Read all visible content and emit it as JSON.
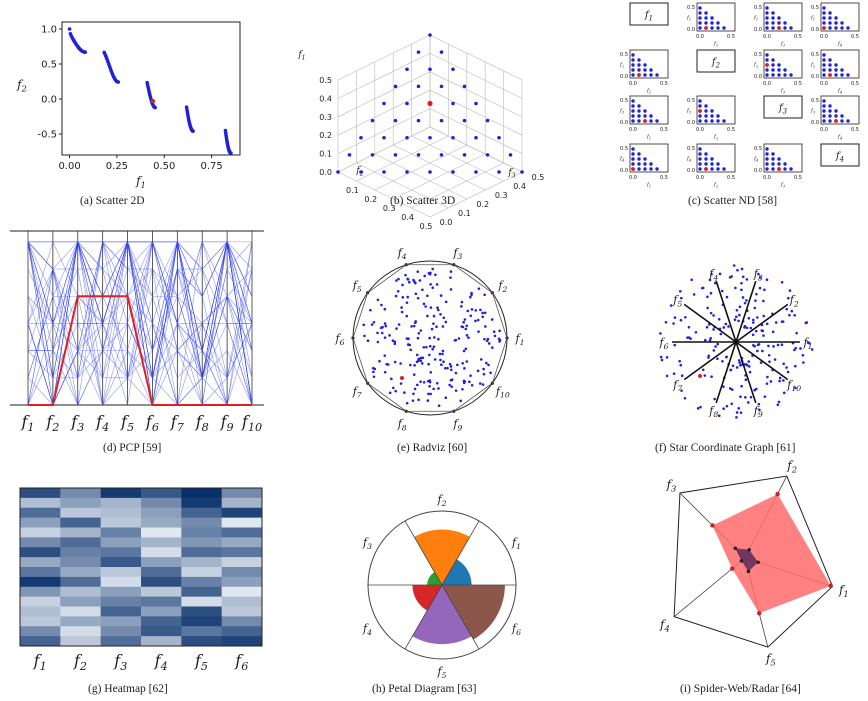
{
  "colors": {
    "point": "#1f22d6",
    "highlight": "#e02020",
    "axis": "#222222"
  },
  "captions": {
    "a": "(a)    Scatter 2D",
    "b": "(b) Scatter 3D",
    "c": "(c) Scatter ND [58]",
    "d": "(d) PCP [59]",
    "e": "(e) Radviz [60]",
    "f": "(f) Star Coordinate Graph [61]",
    "g": "(g) Heatmap [62]",
    "h": "(h) Petal Diagram [63]",
    "i": "(i) Spider-Web/Radar [64]"
  },
  "chart_data": [
    {
      "id": "scatter2d",
      "type": "scatter",
      "xlabel": "f1",
      "ylabel": "f2",
      "xlim": [
        -0.04,
        0.9
      ],
      "ylim": [
        -0.8,
        1.1
      ],
      "xticks": [
        "0.00",
        "0.25",
        "0.50",
        "0.75"
      ],
      "xtick_values": [
        0,
        0.25,
        0.5,
        0.75
      ],
      "yticks": [
        "1.0",
        "0.5",
        "0.0",
        "-0.5"
      ],
      "ytick_values": [
        1.0,
        0.5,
        0.0,
        -0.5
      ],
      "segments": [
        [
          0.0,
          0.083
        ],
        [
          0.183,
          0.257
        ],
        [
          0.41,
          0.452
        ],
        [
          0.618,
          0.652
        ],
        [
          0.823,
          0.852
        ]
      ],
      "highlight": {
        "x": 0.44,
        "y": -0.03
      }
    },
    {
      "id": "scatter3d",
      "type": "scatter",
      "xlabel": "f3",
      "ylabel": "f2",
      "zlabel": "f1",
      "zticks": [
        "0.5",
        "0.4",
        "0.3",
        "0.2",
        "0.1",
        "0.0"
      ],
      "f2ticks": [
        "0.1",
        "0.2",
        "0.3",
        "0.4",
        "0.5"
      ],
      "f3ticks": [
        "0.0",
        "0.1",
        "0.2",
        "0.3",
        "0.4",
        "0.5"
      ],
      "grid_divisions": 8,
      "highlight": {
        "f1": 0.25,
        "f2": 0.125,
        "f3": 0.125
      }
    },
    {
      "id": "scatterND",
      "type": "scatter",
      "labels": [
        "f1",
        "f2",
        "f3",
        "f4"
      ],
      "ticks": [
        "0.0",
        "0.5"
      ],
      "yticks": [
        "0.5",
        "0.0"
      ]
    },
    {
      "id": "pcp",
      "type": "line",
      "axes": [
        "f1",
        "f2",
        "f3",
        "f4",
        "f5",
        "f6",
        "f7",
        "f8",
        "f9",
        "f10"
      ],
      "highlight_values": [
        0,
        0,
        0.5,
        0.5,
        0.5,
        0,
        0,
        0,
        0,
        0
      ]
    },
    {
      "id": "radviz",
      "type": "scatter",
      "anchors": [
        "f1",
        "f2",
        "f3",
        "f4",
        "f5",
        "f6",
        "f7",
        "f8",
        "f9",
        "f10"
      ]
    },
    {
      "id": "starcoord",
      "type": "scatter",
      "axes": [
        "f1",
        "f2",
        "f3",
        "f4",
        "f5",
        "f6",
        "f7",
        "f8",
        "f9",
        "f10"
      ]
    },
    {
      "id": "heatmap",
      "type": "heatmap",
      "columns": [
        "f1",
        "f2",
        "f3",
        "f4",
        "f5",
        "f6"
      ],
      "rows": 16,
      "values": [
        [
          0.85,
          0.55,
          0.95,
          0.8,
          1.0,
          0.55
        ],
        [
          0.3,
          0.45,
          0.35,
          0.55,
          0.95,
          0.35
        ],
        [
          0.7,
          0.25,
          0.3,
          0.45,
          0.75,
          0.9
        ],
        [
          0.45,
          0.75,
          0.25,
          0.4,
          0.55,
          0.1
        ],
        [
          0.2,
          0.35,
          0.6,
          0.1,
          0.6,
          0.7
        ],
        [
          0.55,
          0.7,
          0.45,
          0.35,
          0.5,
          0.4
        ],
        [
          0.85,
          0.6,
          0.65,
          0.15,
          0.7,
          0.65
        ],
        [
          0.4,
          0.55,
          0.8,
          0.45,
          0.35,
          0.2
        ],
        [
          0.65,
          0.4,
          0.25,
          0.7,
          0.2,
          0.55
        ],
        [
          0.95,
          0.7,
          0.15,
          0.85,
          0.6,
          0.45
        ],
        [
          0.5,
          0.3,
          0.45,
          0.25,
          0.75,
          0.1
        ],
        [
          0.2,
          0.45,
          0.6,
          0.65,
          0.15,
          0.3
        ],
        [
          0.3,
          0.15,
          0.75,
          0.45,
          0.85,
          0.25
        ],
        [
          0.25,
          0.4,
          0.45,
          0.75,
          0.9,
          0.55
        ],
        [
          0.55,
          0.15,
          0.55,
          0.8,
          0.65,
          0.75
        ],
        [
          0.75,
          0.25,
          0.7,
          0.35,
          0.85,
          0.9
        ]
      ]
    },
    {
      "id": "petal",
      "type": "pie",
      "labels": [
        "f1",
        "f2",
        "f3",
        "f4",
        "f5",
        "f6"
      ],
      "values": [
        0.4,
        0.75,
        0.2,
        0.4,
        0.8,
        0.85
      ],
      "colors": [
        "#1f77b4",
        "#ff7f0e",
        "#2ca02c",
        "#d62728",
        "#9467bd",
        "#8c564b"
      ]
    },
    {
      "id": "radar",
      "type": "line",
      "labels": [
        "f1",
        "f2",
        "f3",
        "f4",
        "f5"
      ],
      "outer": [
        0.98,
        0.78,
        0.5,
        0.18,
        0.62
      ],
      "inner": [
        0.15,
        0.1,
        0.15,
        0.05,
        0.15
      ]
    }
  ]
}
